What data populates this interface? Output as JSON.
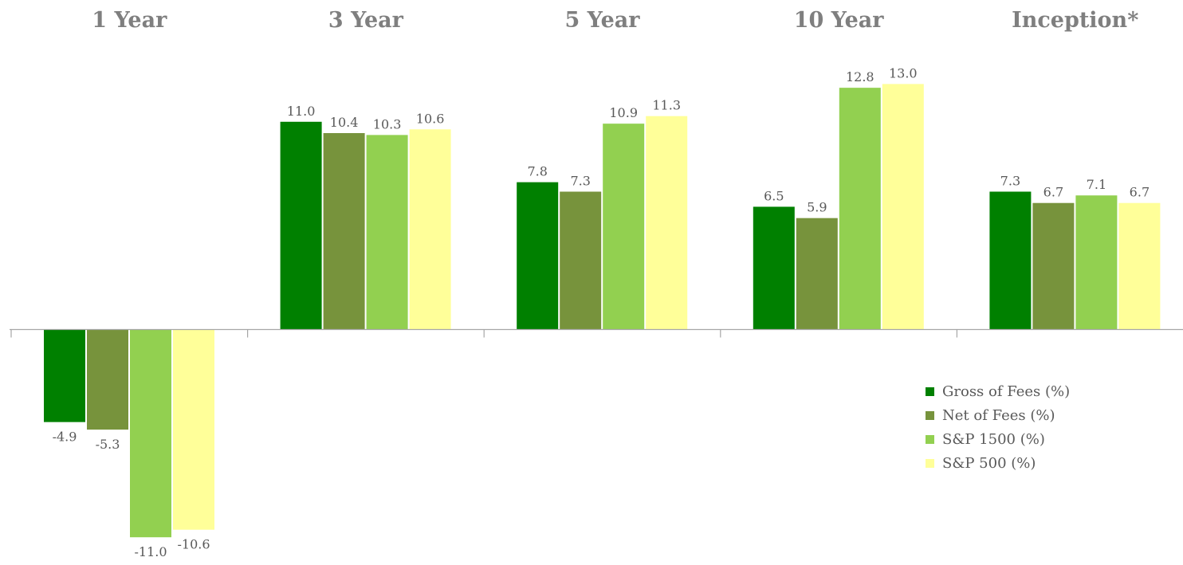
{
  "chart_data": {
    "type": "bar",
    "categories": [
      "1 Year",
      "3 Year",
      "5 Year",
      "10 Year",
      "Inception*"
    ],
    "series": [
      {
        "name": "Gross of Fees (%)",
        "color": "#008000",
        "values": [
          -4.9,
          11.0,
          7.8,
          6.5,
          7.3
        ]
      },
      {
        "name": "Net of Fees (%)",
        "color": "#77933c",
        "values": [
          -5.3,
          10.4,
          7.3,
          5.9,
          6.7
        ]
      },
      {
        "name": "S&P 1500 (%)",
        "color": "#92d050",
        "values": [
          -11.0,
          10.3,
          10.9,
          12.8,
          7.1
        ]
      },
      {
        "name": "S&P 500 (%)",
        "color": "#ffff99",
        "values": [
          -10.6,
          10.6,
          11.3,
          13.0,
          6.7
        ]
      }
    ],
    "value_labels": [
      [
        "-4.9",
        "11.0",
        "7.8",
        "6.5",
        "7.3"
      ],
      [
        "-5.3",
        "10.4",
        "7.3",
        "5.9",
        "6.7"
      ],
      [
        "-11.0",
        "10.3",
        "10.9",
        "12.8",
        "7.1"
      ],
      [
        "-10.6",
        "10.6",
        "11.3",
        "13.0",
        "6.7"
      ]
    ],
    "legend_position": "right",
    "grid": false
  }
}
